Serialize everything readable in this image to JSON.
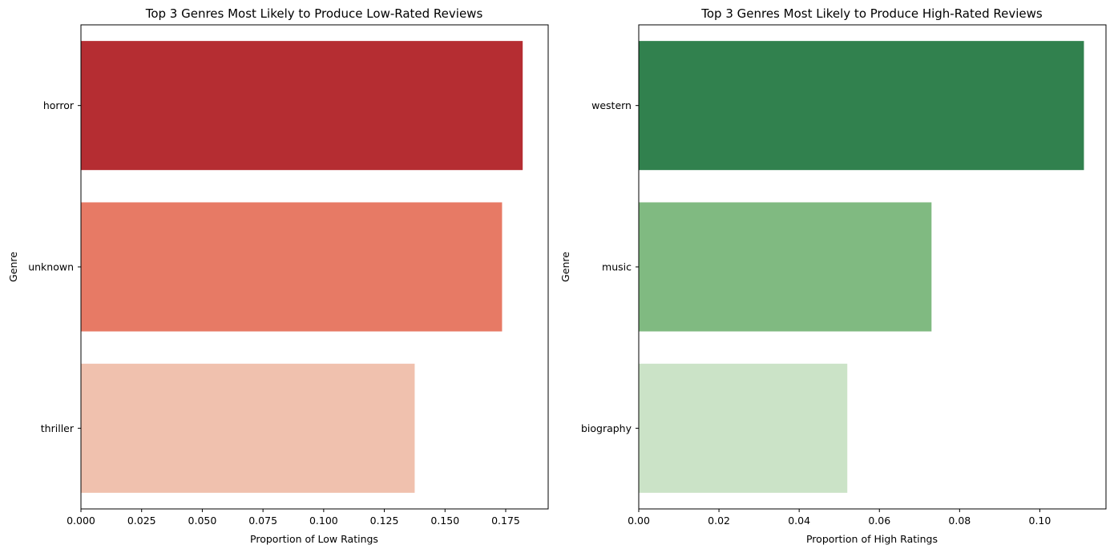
{
  "chart_data": [
    {
      "type": "bar",
      "orientation": "horizontal",
      "title": "Top 3 Genres Most Likely to Produce Low-Rated Reviews",
      "xlabel": "Proportion of Low Ratings",
      "ylabel": "Genre",
      "categories": [
        "horror",
        "unknown",
        "thriller"
      ],
      "values": [
        0.182,
        0.1735,
        0.1375
      ],
      "colors": [
        "#b52d32",
        "#e77a65",
        "#f0c1ae"
      ],
      "xlim": [
        0,
        0.1925
      ],
      "xticks": [
        0,
        0.025,
        0.05,
        0.075,
        0.1,
        0.125,
        0.15,
        0.175
      ],
      "xtick_labels": [
        "0.000",
        "0.025",
        "0.050",
        "0.075",
        "0.100",
        "0.125",
        "0.150",
        "0.175"
      ],
      "grid": false,
      "legend": "none"
    },
    {
      "type": "bar",
      "orientation": "horizontal",
      "title": "Top 3 Genres Most Likely to Produce High-Rated Reviews",
      "xlabel": "Proportion of High Ratings",
      "ylabel": "Genre",
      "categories": [
        "western",
        "music",
        "biography"
      ],
      "values": [
        0.111,
        0.073,
        0.052
      ],
      "colors": [
        "#31814e",
        "#80ba81",
        "#cbe3c7"
      ],
      "xlim": [
        0,
        0.1165
      ],
      "xticks": [
        0,
        0.02,
        0.04,
        0.06,
        0.08,
        0.1
      ],
      "xtick_labels": [
        "0.00",
        "0.02",
        "0.04",
        "0.06",
        "0.08",
        "0.10"
      ],
      "grid": false,
      "legend": "none"
    }
  ]
}
